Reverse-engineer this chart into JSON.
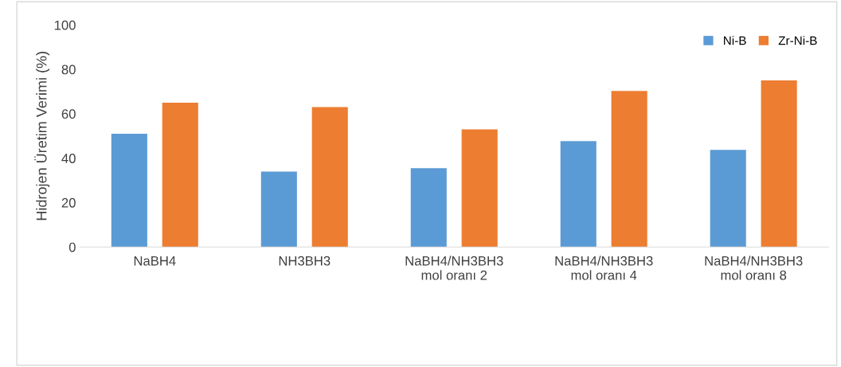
{
  "chart_data": {
    "type": "bar",
    "ylabel": "Hidrojen Üretim Verimi (%)",
    "categories": [
      "NaBH4",
      "NH3BH3",
      "NaBH4/NH3BH3\nmol oranı 2",
      "NaBH4/NH3BH3\nmol oranı 4",
      "NaBH4/NH3BH3\nmol oranı 8"
    ],
    "series": [
      {
        "name": "Ni-B",
        "color": "#5b9bd5",
        "values": [
          51,
          34,
          35.5,
          47.7,
          43.7
        ]
      },
      {
        "name": "Zr-Ni-B",
        "color": "#ed7d31",
        "values": [
          65,
          63,
          53,
          70.3,
          75
        ]
      }
    ],
    "ylim": [
      0,
      100
    ],
    "yticks": [
      0,
      20,
      40,
      60,
      80,
      100
    ],
    "grid": false,
    "legend": "top right"
  }
}
